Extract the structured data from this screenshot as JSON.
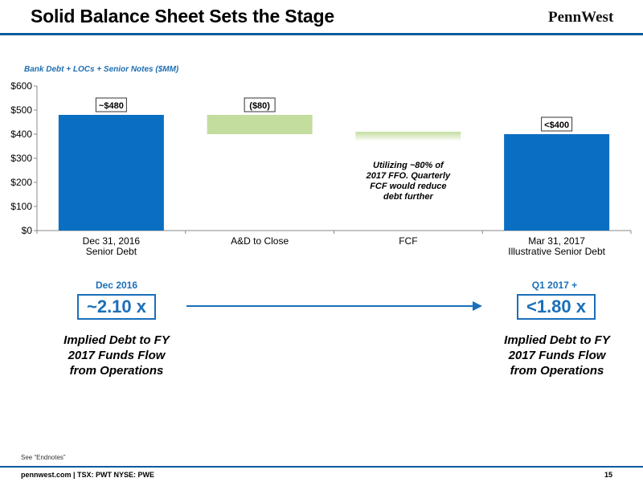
{
  "header": {
    "title": "Solid Balance Sheet Sets the Stage",
    "logo": "PennWest"
  },
  "chart_data": {
    "type": "bar",
    "subtitle": "Bank Debt + LOCs + Senior Notes ($MM)",
    "categories": [
      [
        "Dec 31, 2016",
        "Senior Debt"
      ],
      [
        "A&D to Close"
      ],
      [
        "FCF"
      ],
      [
        "Mar 31, 2017",
        "Illustrative Senior Debt"
      ]
    ],
    "bars": [
      {
        "start": 0,
        "end": 480,
        "color": "#0a6fc2"
      },
      {
        "start": 400,
        "end": 480,
        "color": "#c3dd9f"
      },
      {
        "start": 370,
        "end": 410,
        "color": "#c3dd9f"
      },
      {
        "start": 0,
        "end": 400,
        "color": "#0a6fc2"
      }
    ],
    "data_labels": [
      "~$480",
      "($80)",
      "",
      "<$400"
    ],
    "annotation": [
      "Utilizing ~80% of",
      "2017 FFO. Quarterly",
      "FCF would reduce",
      "debt further"
    ],
    "ylim": [
      0,
      600
    ],
    "yticks": [
      0,
      100,
      200,
      300,
      400,
      500,
      600
    ],
    "ytick_labels": [
      "$0",
      "$100",
      "$200",
      "$300",
      "$400",
      "$500",
      "$600"
    ],
    "grid": false
  },
  "ratios": {
    "left": {
      "period": "Dec 2016",
      "value": "~2.10 x",
      "description": "Implied Debt to FY 2017 Funds Flow from Operations"
    },
    "right": {
      "period": "Q1 2017 +",
      "value": "<1.80 x",
      "description": "Implied Debt to FY 2017 Funds Flow from Operations"
    }
  },
  "footer": {
    "note": "See “Endnotes”",
    "text": "pennwest.com | TSX: PWT NYSE: PWE",
    "page": "15"
  },
  "colors": {
    "brand_blue": "#0a6fc2",
    "accent_green": "#c3dd9f"
  }
}
